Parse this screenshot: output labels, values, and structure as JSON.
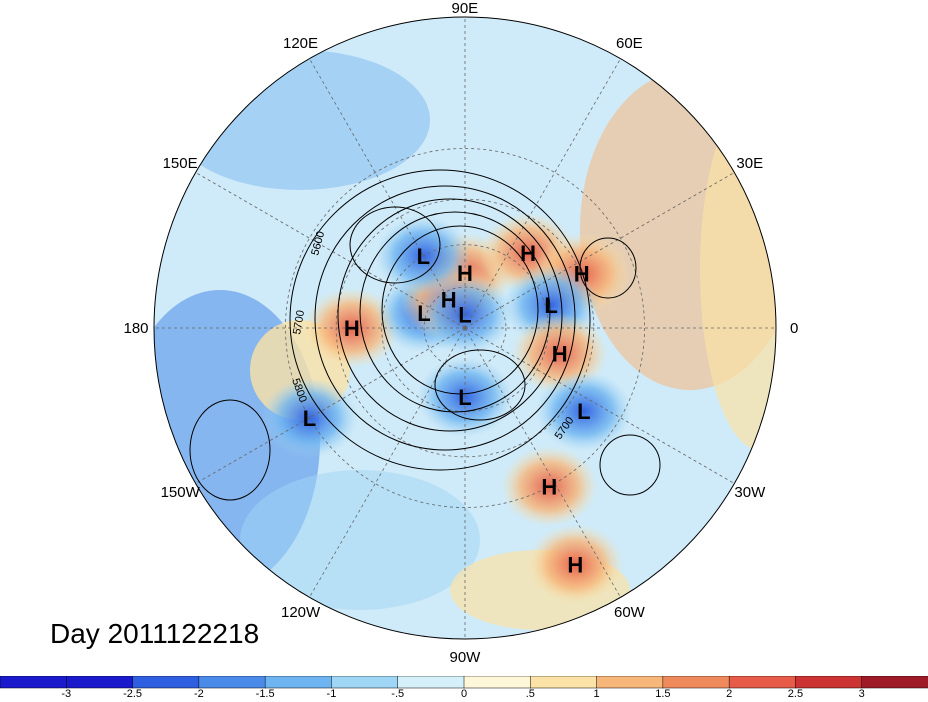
{
  "longitude_labels": [
    "90E",
    "60E",
    "30E",
    "0",
    "30W",
    "60W",
    "90W",
    "120W",
    "150W",
    "180",
    "150E",
    "120E"
  ],
  "centers": [
    {
      "type": "H",
      "lon": 90,
      "lat": 70
    },
    {
      "type": "H",
      "lon": 50,
      "lat": 55
    },
    {
      "type": "H",
      "lon": 25,
      "lat": 45
    },
    {
      "type": "L",
      "lon": 15,
      "lat": 58
    },
    {
      "type": "H",
      "lon": -15,
      "lat": 55
    },
    {
      "type": "L",
      "lon": -35,
      "lat": 40
    },
    {
      "type": "H",
      "lon": -62,
      "lat": 30
    },
    {
      "type": "H",
      "lon": -65,
      "lat": 10
    },
    {
      "type": "L",
      "lon": -90,
      "lat": 65
    },
    {
      "type": "L",
      "lon": -150,
      "lat": 30
    },
    {
      "type": "H",
      "lon": 180,
      "lat": 50
    },
    {
      "type": "L",
      "lon": 160,
      "lat": 74
    },
    {
      "type": "H",
      "lon": 120,
      "lat": 78
    },
    {
      "type": "L",
      "lon": 90,
      "lat": 85
    },
    {
      "type": "L",
      "lon": 120,
      "lat": 60
    }
  ],
  "contour_labels": [
    "5600",
    "5700",
    "5800",
    "5700"
  ],
  "colors": {
    "scale": [
      "#1a1acc",
      "#2d5fe0",
      "#4a8ae8",
      "#6eb4f0",
      "#9fd5f5",
      "#d6f0fa",
      "#fdf6d8",
      "#fbe2a6",
      "#f7b67a",
      "#ef8a5c",
      "#e65c48",
      "#cc3333",
      "#9e1a26"
    ]
  },
  "colorbar_ticks": [
    "-3",
    "-2.5",
    "-2",
    "-1.5",
    "-1",
    "-.5",
    "0",
    ".5",
    "1",
    "1.5",
    "2",
    "2.5",
    "3"
  ],
  "footer": {
    "day_label": "Day 2011122218"
  }
}
